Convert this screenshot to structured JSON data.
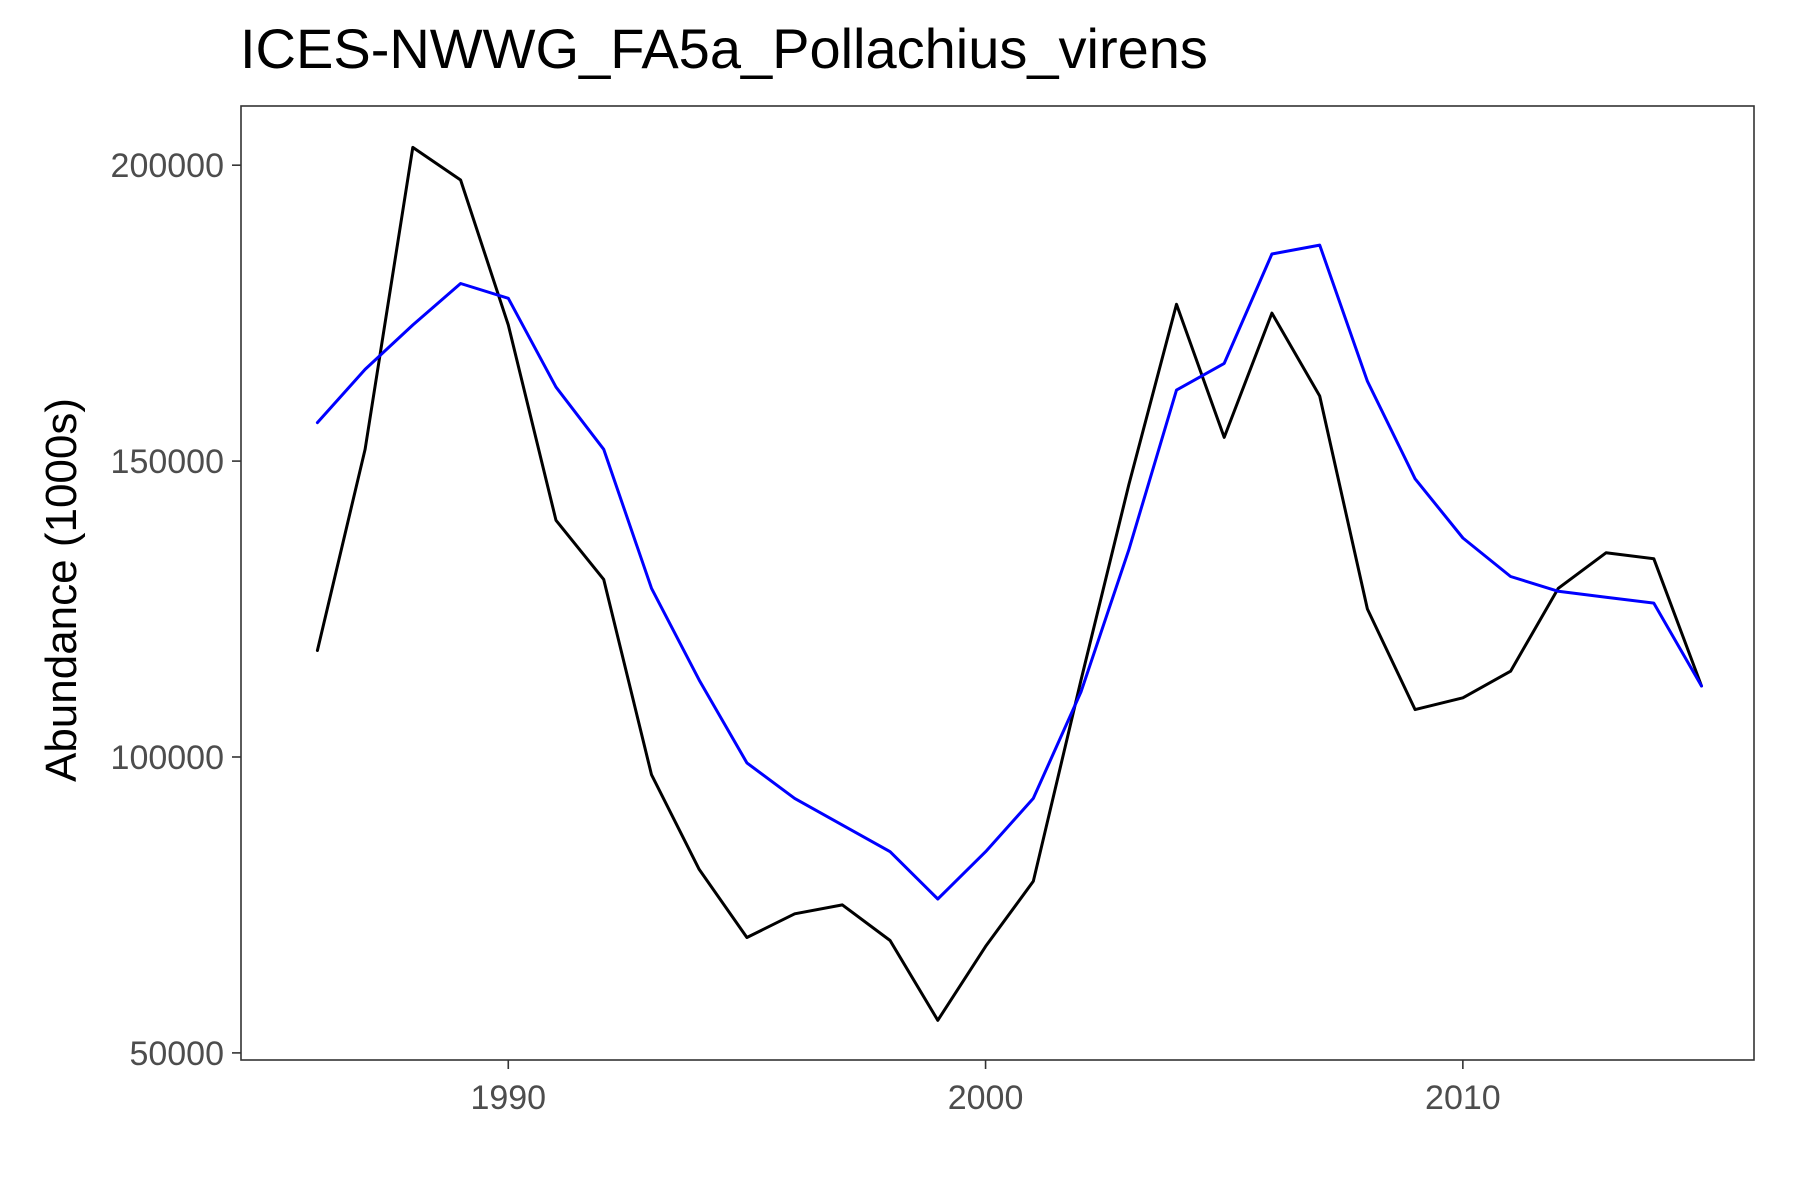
{
  "chart_data": {
    "type": "line",
    "title": "ICES-NWWG_FA5a_Pollachius_virens",
    "xlabel": "",
    "ylabel": "Abundance (1000s)",
    "xlim": [
      1984.4,
      2016.1
    ],
    "ylim": [
      48800,
      210000
    ],
    "x_ticks": [
      1990,
      2000,
      2010
    ],
    "y_ticks": [
      50000,
      100000,
      150000,
      200000
    ],
    "grid": false,
    "legend": "none",
    "x": [
      1986,
      1987,
      1988,
      1989,
      1990,
      1991,
      1992,
      1993,
      1994,
      1995,
      1996,
      1997,
      1998,
      1999,
      2000,
      2001,
      2002,
      2003,
      2004,
      2005,
      2006,
      2007,
      2008,
      2009,
      2010,
      2011,
      2012,
      2013,
      2014,
      2015
    ],
    "series": [
      {
        "color": "#000000",
        "values": [
          118000,
          152000,
          203000,
          197500,
          173000,
          140000,
          130000,
          97000,
          81000,
          69500,
          73500,
          75000,
          69000,
          55500,
          68000,
          79000,
          113000,
          146000,
          176500,
          154000,
          175000,
          161000,
          125000,
          108000,
          110000,
          114500,
          128500,
          134500,
          133500,
          112000
        ]
      },
      {
        "color": "#0000ff",
        "values": [
          156500,
          165500,
          173000,
          180000,
          177500,
          162500,
          152000,
          128500,
          113000,
          99000,
          93000,
          88500,
          84000,
          76000,
          84000,
          93000,
          111000,
          135000,
          162000,
          166500,
          185000,
          186500,
          163500,
          147000,
          137000,
          130500,
          128000,
          127000,
          126000,
          112000
        ]
      }
    ]
  }
}
